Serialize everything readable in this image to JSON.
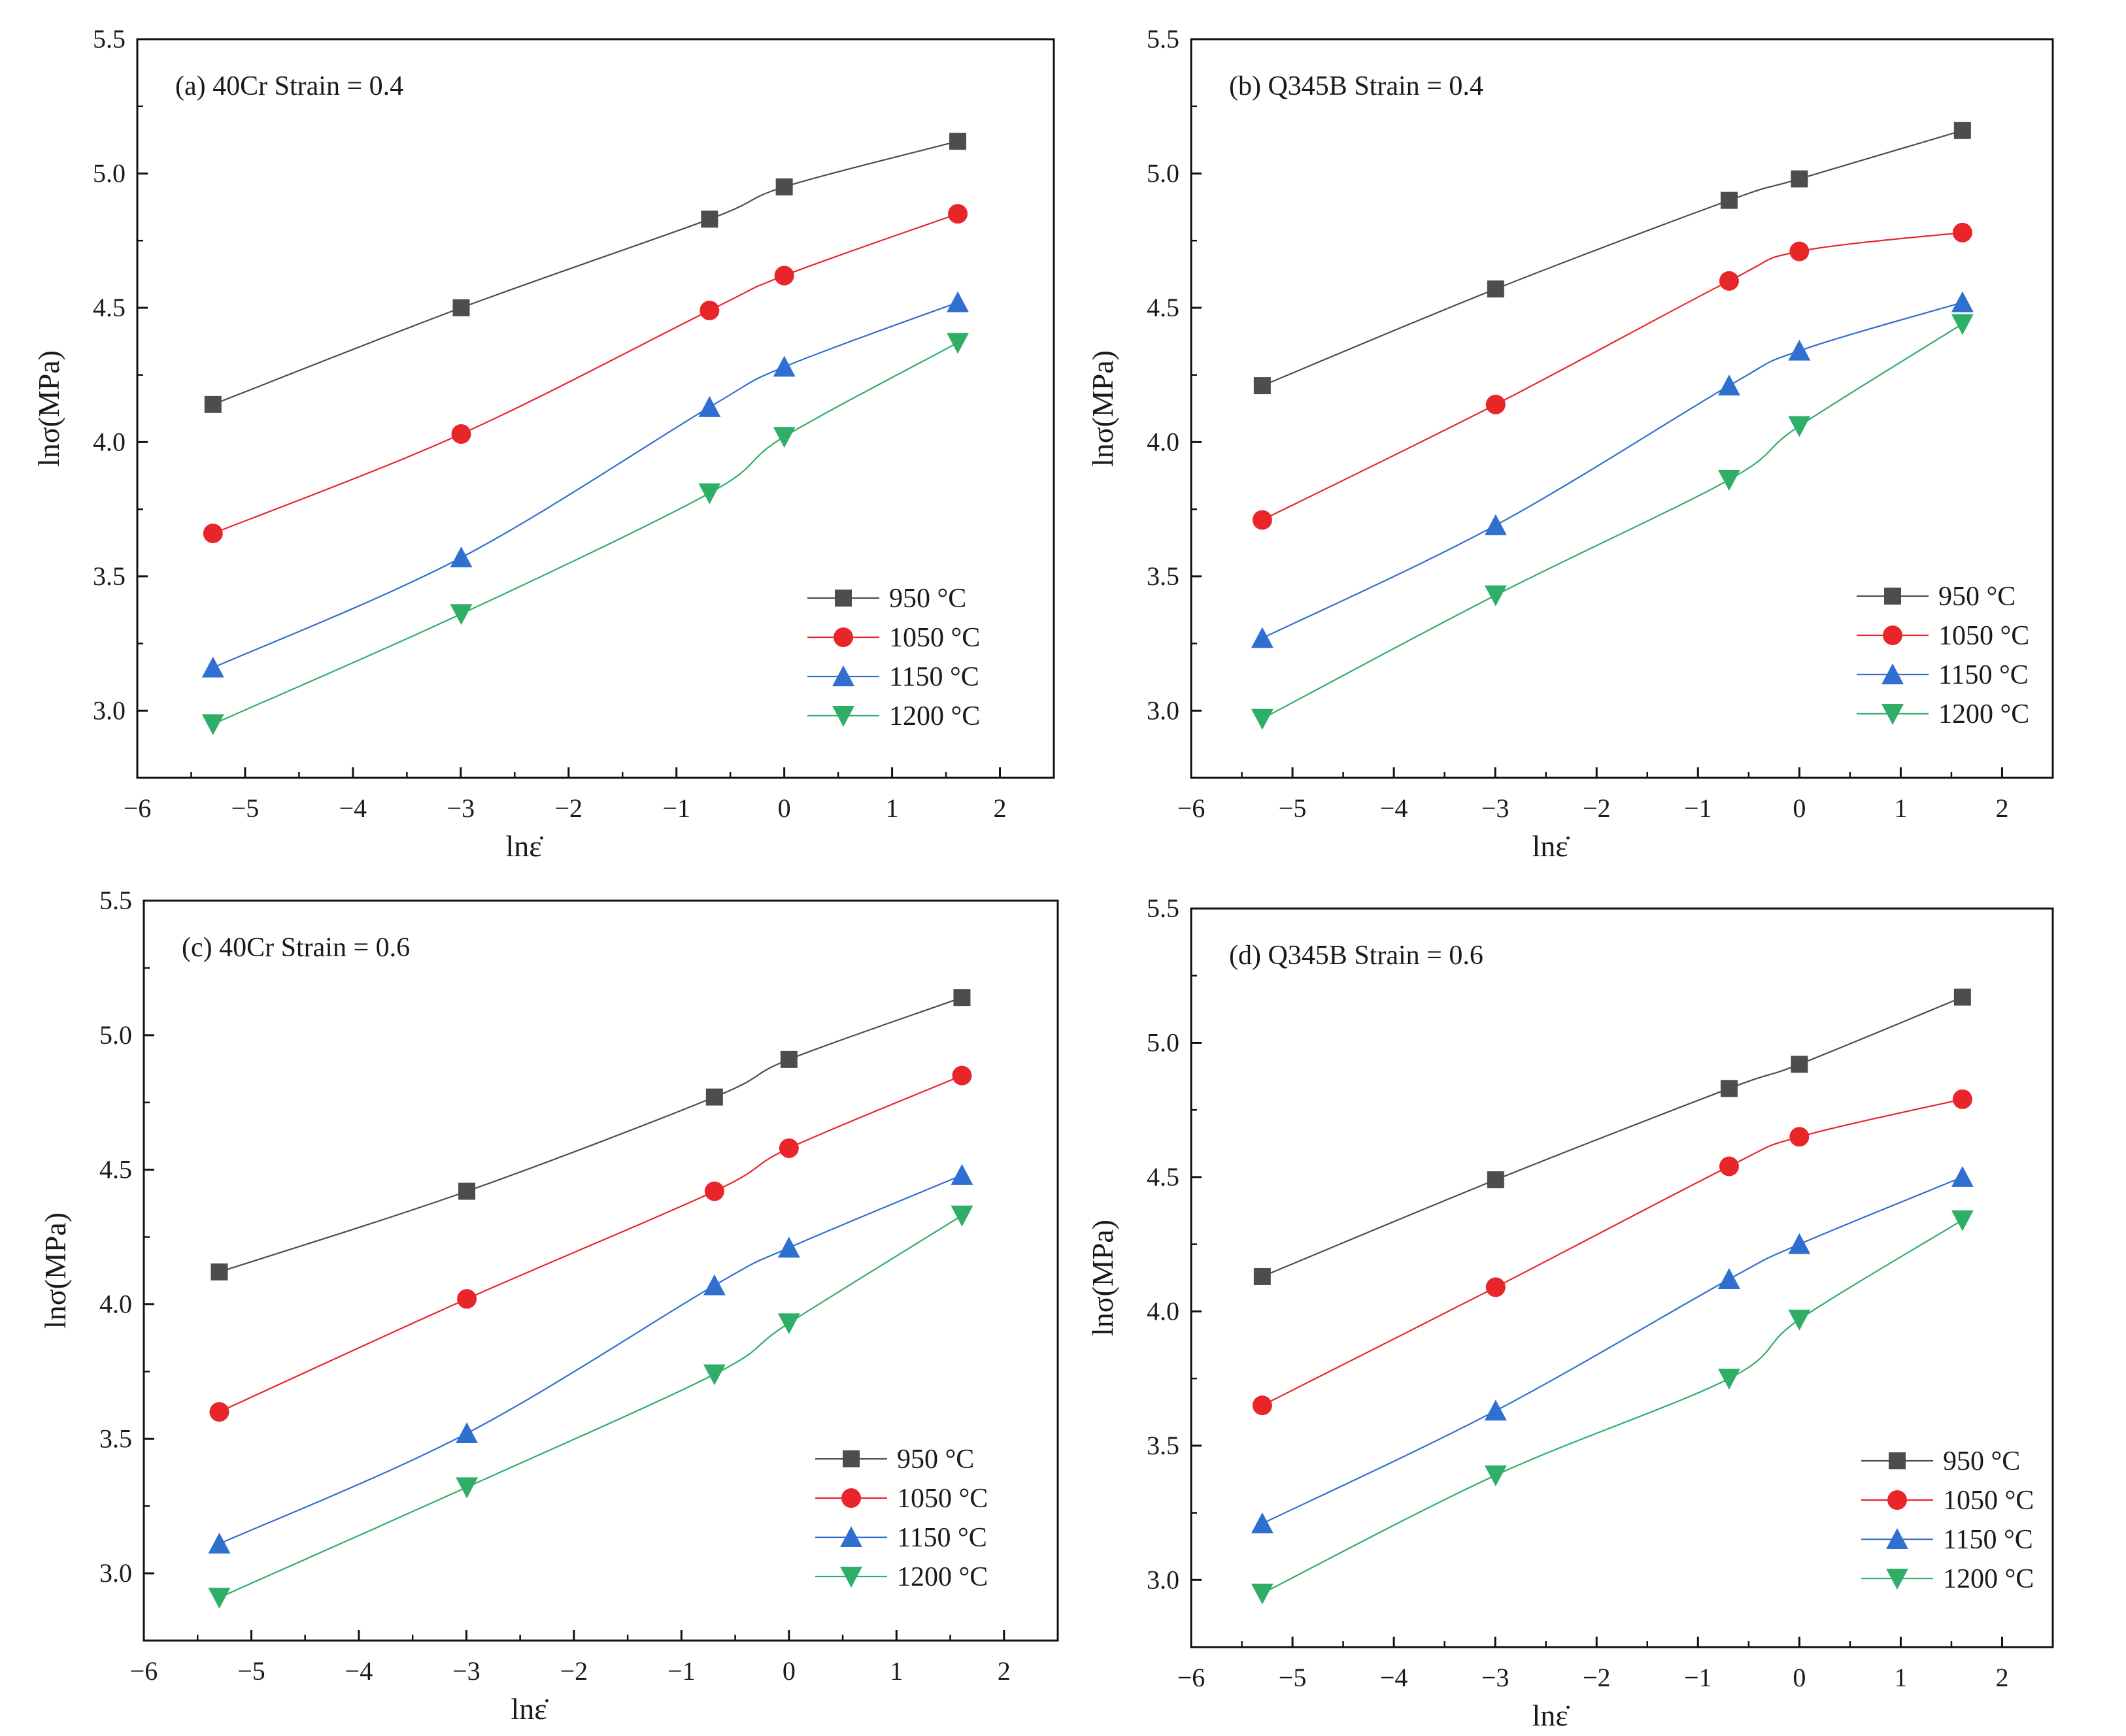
{
  "figure": {
    "colors": {
      "950": "#4d4d4d",
      "1050": "#e8262a",
      "1150": "#2f6fd0",
      "1200": "#2fae68",
      "axis": "#111111"
    }
  },
  "chart_data": [
    {
      "type": "scatter",
      "panel": "a",
      "title": "(a)  40Cr  Strain = 0.4",
      "xlabel": "lnε̇",
      "ylabel": "lnσ(MPa)",
      "xlim": [
        -6,
        2.5
      ],
      "ylim": [
        2.75,
        5.5
      ],
      "xticks": [
        -6,
        -5,
        -4,
        -3,
        -2,
        -1,
        0,
        1,
        2
      ],
      "xtick_labels": [
        "−6",
        "−5",
        "−4",
        "−3",
        "−2",
        "−1",
        "0",
        "1",
        "2"
      ],
      "yticks": [
        3.0,
        3.5,
        4.0,
        4.5,
        5.0,
        5.5
      ],
      "ytick_labels": [
        "3.0",
        "3.5",
        "4.0",
        "4.5",
        "5.0",
        "5.5"
      ],
      "legend_position": "lower-right",
      "x": [
        -5.298,
        -2.996,
        -0.693,
        0,
        1.609
      ],
      "series": [
        {
          "name": "950 °C",
          "key": "950",
          "marker": "square",
          "values": [
            4.14,
            4.5,
            4.83,
            4.95,
            5.12
          ]
        },
        {
          "name": "1050 °C",
          "key": "1050",
          "marker": "circle",
          "values": [
            3.66,
            4.03,
            4.49,
            4.62,
            4.85
          ]
        },
        {
          "name": "1150 °C",
          "key": "1150",
          "marker": "triangle-up",
          "values": [
            3.16,
            3.57,
            4.13,
            4.28,
            4.52
          ]
        },
        {
          "name": "1200 °C",
          "key": "1200",
          "marker": "triangle-down",
          "values": [
            2.95,
            3.36,
            3.81,
            4.02,
            4.37
          ]
        }
      ]
    },
    {
      "type": "scatter",
      "panel": "b",
      "title": "(b)  Q345B  Strain = 0.4",
      "xlabel": "lnε̇",
      "ylabel": "lnσ(MPa)",
      "xlim": [
        -6,
        2.5
      ],
      "ylim": [
        2.75,
        5.5
      ],
      "xticks": [
        -6,
        -5,
        -4,
        -3,
        -2,
        -1,
        0,
        1,
        2
      ],
      "xtick_labels": [
        "−6",
        "−5",
        "−4",
        "−3",
        "−2",
        "−1",
        "0",
        "1",
        "2"
      ],
      "yticks": [
        3.0,
        3.5,
        4.0,
        4.5,
        5.0,
        5.5
      ],
      "ytick_labels": [
        "3.0",
        "3.5",
        "4.0",
        "4.5",
        "5.0",
        "5.5"
      ],
      "legend_position": "lower-right",
      "x": [
        -5.298,
        -2.996,
        -0.693,
        0,
        1.609
      ],
      "series": [
        {
          "name": "950 °C",
          "key": "950",
          "marker": "square",
          "values": [
            4.21,
            4.57,
            4.9,
            4.98,
            5.16
          ]
        },
        {
          "name": "1050 °C",
          "key": "1050",
          "marker": "circle",
          "values": [
            3.71,
            4.14,
            4.6,
            4.71,
            4.78
          ]
        },
        {
          "name": "1150 °C",
          "key": "1150",
          "marker": "triangle-up",
          "values": [
            3.27,
            3.69,
            4.21,
            4.34,
            4.52
          ]
        },
        {
          "name": "1200 °C",
          "key": "1200",
          "marker": "triangle-down",
          "values": [
            2.97,
            3.43,
            3.86,
            4.06,
            4.44
          ]
        }
      ]
    },
    {
      "type": "scatter",
      "panel": "c",
      "title": "(c)  40Cr  Strain = 0.6",
      "xlabel": "lnε̇",
      "ylabel": "lnσ(MPa)",
      "xlim": [
        -6,
        2.5
      ],
      "ylim": [
        2.75,
        5.5
      ],
      "xticks": [
        -6,
        -5,
        -4,
        -3,
        -2,
        -1,
        0,
        1,
        2
      ],
      "xtick_labels": [
        "−6",
        "−5",
        "−4",
        "−3",
        "−2",
        "−1",
        "0",
        "1",
        "2"
      ],
      "yticks": [
        3.0,
        3.5,
        4.0,
        4.5,
        5.0,
        5.5
      ],
      "ytick_labels": [
        "3.0",
        "3.5",
        "4.0",
        "4.5",
        "5.0",
        "5.5"
      ],
      "legend_position": "lower-right",
      "x": [
        -5.298,
        -2.996,
        -0.693,
        0,
        1.609
      ],
      "series": [
        {
          "name": "950 °C",
          "key": "950",
          "marker": "square",
          "values": [
            4.12,
            4.42,
            4.77,
            4.91,
            5.14
          ]
        },
        {
          "name": "1050 °C",
          "key": "1050",
          "marker": "circle",
          "values": [
            3.6,
            4.02,
            4.42,
            4.58,
            4.85
          ]
        },
        {
          "name": "1150 °C",
          "key": "1150",
          "marker": "triangle-up",
          "values": [
            3.11,
            3.52,
            4.07,
            4.21,
            4.48
          ]
        },
        {
          "name": "1200 °C",
          "key": "1200",
          "marker": "triangle-down",
          "values": [
            2.91,
            3.32,
            3.74,
            3.93,
            4.33
          ]
        }
      ]
    },
    {
      "type": "scatter",
      "panel": "d",
      "title": "(d)  Q345B  Strain = 0.6",
      "xlabel": "lnε̇",
      "ylabel": "lnσ(MPa)",
      "xlim": [
        -6,
        2.5
      ],
      "ylim": [
        2.75,
        5.5
      ],
      "xticks": [
        -6,
        -5,
        -4,
        -3,
        -2,
        -1,
        0,
        1,
        2
      ],
      "xtick_labels": [
        "−6",
        "−5",
        "−4",
        "−3",
        "−2",
        "−1",
        "0",
        "1",
        "2"
      ],
      "yticks": [
        3.0,
        3.5,
        4.0,
        4.5,
        5.0,
        5.5
      ],
      "ytick_labels": [
        "3.0",
        "3.5",
        "4.0",
        "4.5",
        "5.0",
        "5.5"
      ],
      "legend_position": "lower-right",
      "x": [
        -5.298,
        -2.996,
        -0.693,
        0,
        1.609
      ],
      "series": [
        {
          "name": "950 °C",
          "key": "950",
          "marker": "square",
          "values": [
            4.13,
            4.49,
            4.83,
            4.92,
            5.17
          ]
        },
        {
          "name": "1050 °C",
          "key": "1050",
          "marker": "circle",
          "values": [
            3.65,
            4.09,
            4.54,
            4.65,
            4.79
          ]
        },
        {
          "name": "1150 °C",
          "key": "1150",
          "marker": "triangle-up",
          "values": [
            3.21,
            3.63,
            4.12,
            4.25,
            4.5
          ]
        },
        {
          "name": "1200 °C",
          "key": "1200",
          "marker": "triangle-down",
          "values": [
            2.95,
            3.39,
            3.75,
            3.97,
            4.34
          ]
        }
      ]
    }
  ]
}
